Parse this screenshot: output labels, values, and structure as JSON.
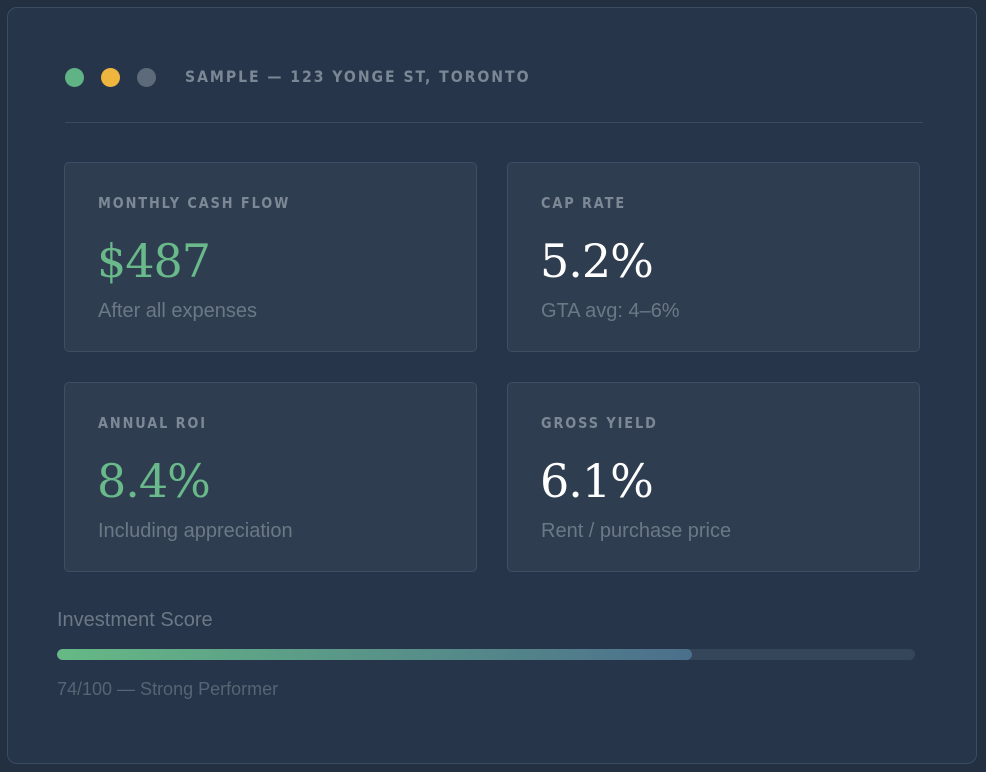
{
  "header": {
    "address": "SAMPLE — 123 YONGE ST, TORONTO",
    "dots": [
      {
        "name": "green",
        "color": "#5fb385"
      },
      {
        "name": "yellow",
        "color": "#eeb63f"
      },
      {
        "name": "gray",
        "color": "#5c6a7a"
      }
    ]
  },
  "metrics": [
    {
      "label": "MONTHLY CASH FLOW",
      "value": "$487",
      "sub": "After all expenses",
      "value_color": "#69b98b"
    },
    {
      "label": "CAP RATE",
      "value": "5.2%",
      "sub": "GTA avg: 4–6%",
      "value_color": "#ffffff"
    },
    {
      "label": "ANNUAL ROI",
      "value": "8.4%",
      "sub": "Including appreciation",
      "value_color": "#69b98b"
    },
    {
      "label": "GROSS YIELD",
      "value": "6.1%",
      "sub": "Rent / purchase price",
      "value_color": "#ffffff"
    }
  ],
  "score": {
    "label": "Investment Score",
    "value": 74,
    "max": 100,
    "text": "74/100 — Strong Performer",
    "gradient_start": "#66b985",
    "gradient_end": "#4b6f8c"
  }
}
